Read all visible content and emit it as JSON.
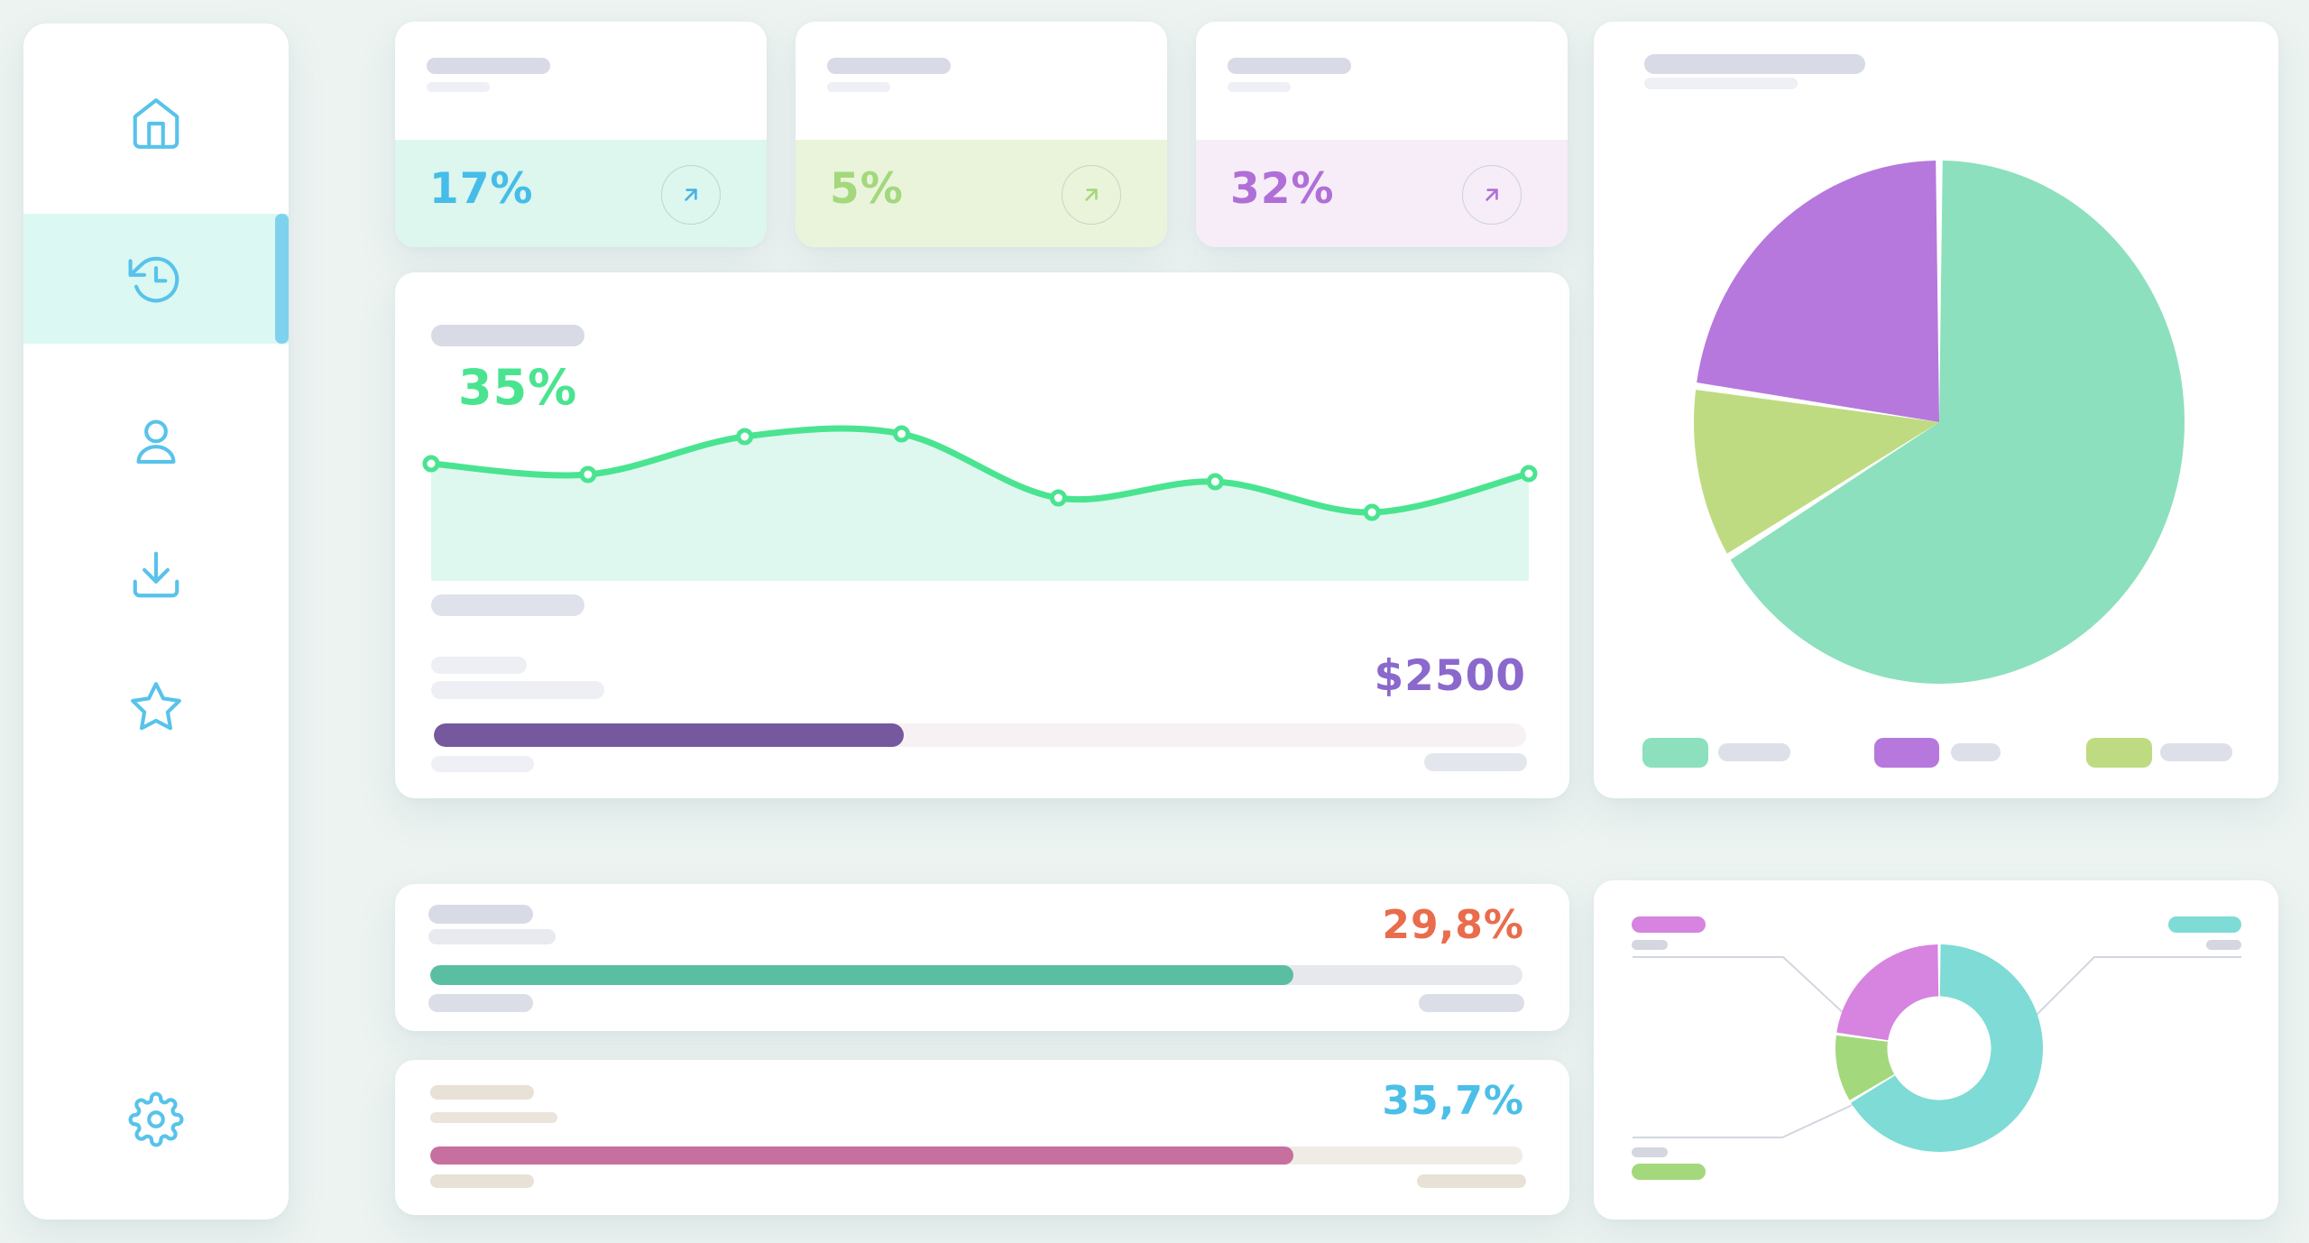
{
  "meta": {
    "page_bg": "#ecf3f1",
    "card_bg": "#ffffff"
  },
  "sidebar": {
    "icon_color": "#58c3ea",
    "active_bg": "#dcf8f2",
    "active_bar_color": "#7fd2ee",
    "items": [
      {
        "id": "home",
        "icon": "home-icon",
        "active": false
      },
      {
        "id": "history",
        "icon": "history-icon",
        "active": true
      },
      {
        "id": "profile",
        "icon": "user-icon",
        "active": false
      },
      {
        "id": "downloads",
        "icon": "download-icon",
        "active": false
      },
      {
        "id": "favorites",
        "icon": "star-icon",
        "active": false
      }
    ],
    "bottom_item": {
      "id": "settings",
      "icon": "gear-icon"
    }
  },
  "stat_cards": [
    {
      "value": "17%",
      "value_color": "#45bde8",
      "panel_bg": "#ddf6ee",
      "arrow_color": "#45b3e8",
      "arrow_icon": "arrow-up-right-icon"
    },
    {
      "value": "5%",
      "value_color": "#a3d87c",
      "panel_bg": "#eaf4db",
      "arrow_color": "#a3d87c",
      "arrow_icon": "arrow-up-right-icon"
    },
    {
      "value": "32%",
      "value_color": "#b06fd6",
      "panel_bg": "#f6edf9",
      "arrow_color": "#b06fd6",
      "arrow_icon": "arrow-up-right-icon"
    }
  ],
  "main_card": {
    "value": "35%",
    "value_color": "#4ae491",
    "amount": "$2500",
    "amount_color": "#8b68cc",
    "progress": {
      "percent": 43,
      "fill": "#75589e",
      "track": "#f8f1f3"
    }
  },
  "progress_cards": [
    {
      "value": "29,8%",
      "value_color": "#e96c4c",
      "progress": {
        "percent": 79,
        "fill": "#5abfa2",
        "track": "#e7e8ee"
      }
    },
    {
      "value": "35,7%",
      "value_color": "#4bbfe8",
      "progress": {
        "percent": 79,
        "fill": "#c76f9f",
        "track": "#efece5"
      }
    }
  ],
  "chart_data": [
    {
      "type": "area",
      "name": "main-trend-line",
      "title": "",
      "x": [
        0,
        1,
        2,
        3,
        4,
        5,
        6,
        7
      ],
      "values": [
        130,
        118,
        160,
        163,
        92,
        110,
        76,
        119
      ],
      "ylim": [
        0,
        182
      ],
      "grid": false,
      "axis_labels": false,
      "line_color": "#4ae491",
      "area_color": "#dff8ef",
      "point_style": "white-center-dots"
    },
    {
      "type": "pie",
      "name": "distribution-pie",
      "title": "",
      "start_angle": 0,
      "clockwise": true,
      "legend_position": "bottom",
      "legend_order": [
        0,
        2,
        1
      ],
      "slices": [
        {
          "label": "segment-a",
          "value": 66.4,
          "color": "#8ce0bd"
        },
        {
          "label": "segment-b",
          "value": 10.8,
          "color": "#bfdb81"
        },
        {
          "label": "segment-c",
          "value": 22.8,
          "color": "#b678dd"
        }
      ]
    },
    {
      "type": "donut",
      "name": "distribution-donut",
      "title": "",
      "inner_ratio": 0.5,
      "start_angle": 0,
      "clockwise": true,
      "callouts": [
        "top-left",
        "top-right",
        "bottom-left"
      ],
      "slices": [
        {
          "label": "segment-a",
          "value": 66.4,
          "color": "#7edbd5"
        },
        {
          "label": "segment-b",
          "value": 10.8,
          "color": "#a3d87c"
        },
        {
          "label": "segment-c",
          "value": 22.8,
          "color": "#d783e0"
        }
      ]
    }
  ]
}
